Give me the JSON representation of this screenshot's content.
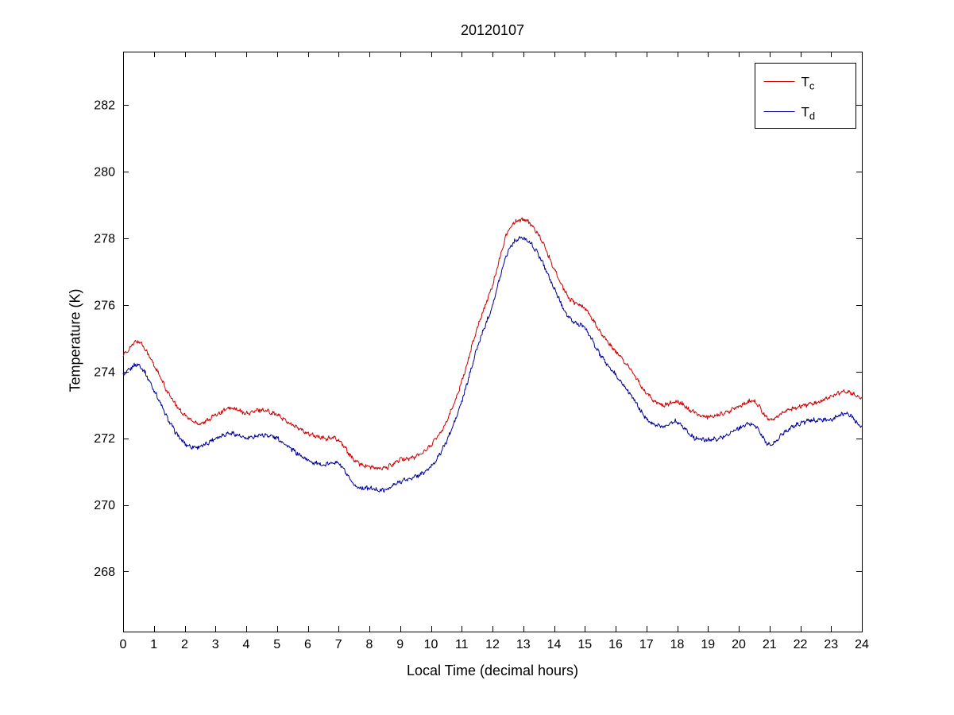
{
  "page": {
    "background": "#ffffff",
    "text_color": "#000000"
  },
  "chart_data": {
    "type": "line",
    "title": "20120107",
    "xlabel": "Local Time (decimal hours)",
    "ylabel": "Temperature (K)",
    "xlim": [
      0,
      24
    ],
    "ylim": [
      266.2,
      283.6
    ],
    "xticks": [
      0,
      1,
      2,
      3,
      4,
      5,
      6,
      7,
      8,
      9,
      10,
      11,
      12,
      13,
      14,
      15,
      16,
      17,
      18,
      19,
      20,
      21,
      22,
      23,
      24
    ],
    "yticks": [
      268,
      270,
      272,
      274,
      276,
      278,
      280,
      282
    ],
    "grid": false,
    "legend": {
      "position": "top-right",
      "entries": [
        {
          "name": "T_c",
          "label_main": "T",
          "label_sub": "c",
          "color": "#cc0000"
        },
        {
          "name": "T_d",
          "label_main": "T",
          "label_sub": "d",
          "color": "#000099"
        }
      ]
    },
    "x": [
      0,
      0.5,
      1,
      1.5,
      2,
      2.5,
      3,
      3.5,
      4,
      4.5,
      5,
      5.5,
      6,
      6.5,
      7,
      7.5,
      8,
      8.5,
      9,
      9.5,
      10,
      10.5,
      11,
      11.5,
      12,
      12.5,
      13,
      13.5,
      14,
      14.5,
      15,
      15.5,
      16,
      16.5,
      17,
      17.5,
      18,
      18.5,
      19,
      19.5,
      20,
      20.5,
      21,
      21.5,
      22,
      22.5,
      23,
      23.5,
      24
    ],
    "series": [
      {
        "name": "T_c",
        "color": "#cc0000",
        "values": [
          274.5,
          274.9,
          274.2,
          273.3,
          272.7,
          272.45,
          272.7,
          272.9,
          272.75,
          272.85,
          272.7,
          272.4,
          272.15,
          272.0,
          271.95,
          271.35,
          271.15,
          271.1,
          271.35,
          271.45,
          271.8,
          272.5,
          273.7,
          275.3,
          276.6,
          278.2,
          278.55,
          278.1,
          277.1,
          276.2,
          275.9,
          275.2,
          274.6,
          274.05,
          273.35,
          273.0,
          273.1,
          272.8,
          272.65,
          272.75,
          272.95,
          273.1,
          272.55,
          272.8,
          272.95,
          273.05,
          273.25,
          273.4,
          273.2
        ]
      },
      {
        "name": "T_d",
        "color": "#000099",
        "values": [
          273.9,
          274.2,
          273.45,
          272.5,
          271.85,
          271.75,
          272.0,
          272.15,
          272.0,
          272.1,
          272.0,
          271.65,
          271.35,
          271.2,
          271.25,
          270.6,
          270.5,
          270.45,
          270.7,
          270.85,
          271.15,
          271.9,
          273.1,
          274.7,
          276.0,
          277.6,
          278.0,
          277.5,
          276.5,
          275.6,
          275.3,
          274.5,
          273.9,
          273.3,
          272.6,
          272.35,
          272.5,
          272.05,
          271.95,
          272.05,
          272.3,
          272.4,
          271.8,
          272.2,
          272.45,
          272.55,
          272.55,
          272.75,
          272.35
        ]
      }
    ]
  }
}
